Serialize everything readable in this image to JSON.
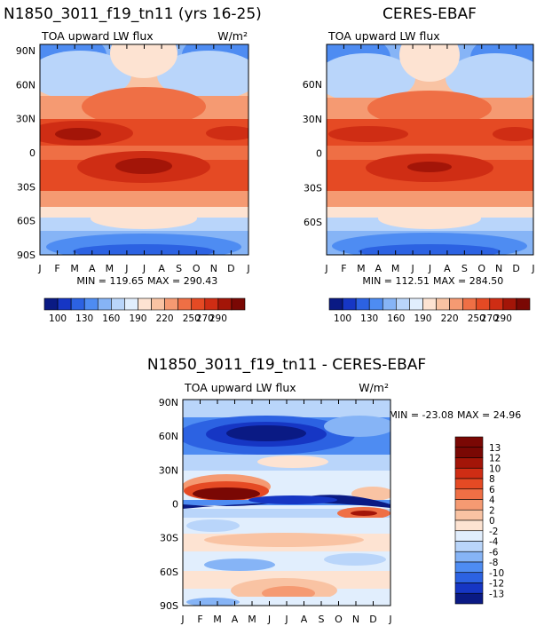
{
  "chart_data": [
    {
      "type": "heatmap",
      "title": "N1850_3011_f19_tn11 (yrs 16-25)",
      "variable": "TOA upward LW flux",
      "units": "W/m²",
      "min_label": "MIN = 119.65",
      "max_label": "MAX = 290.43",
      "x_ticks": [
        "J",
        "F",
        "M",
        "A",
        "M",
        "J",
        "J",
        "A",
        "S",
        "O",
        "N",
        "D",
        "J"
      ],
      "y_ticks": [
        "90N",
        "60N",
        "30N",
        "0",
        "30S",
        "60S",
        "90S"
      ],
      "y_values": [
        90,
        60,
        30,
        0,
        -30,
        -60,
        -90
      ],
      "ylim": [
        -90,
        90
      ],
      "colorbar_levels": [
        "100",
        "130",
        "160",
        "190",
        "220",
        "250",
        "270",
        "290"
      ]
    },
    {
      "type": "heatmap",
      "title": "CERES-EBAF",
      "variable": "TOA upward LW flux",
      "min_label": "MIN = 112.51",
      "max_label": "MAX = 284.50",
      "x_ticks": [
        "J",
        "F",
        "M",
        "A",
        "M",
        "J",
        "J",
        "A",
        "S",
        "O",
        "N",
        "D",
        "J"
      ],
      "y_ticks": [
        "60N",
        "30N",
        "0",
        "30S",
        "60S"
      ],
      "y_values": [
        60,
        30,
        0,
        -30,
        -60
      ],
      "ylim": [
        -90,
        90
      ],
      "colorbar_levels": [
        "100",
        "130",
        "160",
        "190",
        "220",
        "250",
        "270",
        "290"
      ]
    },
    {
      "type": "heatmap",
      "title": "N1850_3011_f19_tn11 - CERES-EBAF",
      "variable": "TOA upward LW flux",
      "units": "W/m²",
      "min_label": "MIN = -23.08",
      "max_label": "MAX =  24.96",
      "x_ticks": [
        "J",
        "F",
        "M",
        "A",
        "M",
        "J",
        "J",
        "A",
        "S",
        "O",
        "N",
        "D",
        "J"
      ],
      "y_ticks": [
        "90N",
        "60N",
        "30N",
        "0",
        "30S",
        "60S",
        "90S"
      ],
      "y_values": [
        90,
        60,
        30,
        0,
        -30,
        -60,
        -90
      ],
      "ylim": [
        -90,
        90
      ],
      "colorbar_levels": [
        "13",
        "12",
        "10",
        "8",
        "6",
        "4",
        "2",
        "0",
        "-2",
        "-4",
        "-6",
        "-8",
        "-10",
        "-12",
        "-13"
      ]
    }
  ],
  "colors": {
    "abs": [
      "#0a1a84",
      "#1636c4",
      "#2c62e2",
      "#4e8cf2",
      "#86b4f6",
      "#b9d5fa",
      "#e1eefd",
      "#fde3d2",
      "#f9c3a3",
      "#f59a72",
      "#ef6f45",
      "#e54a24",
      "#cf2d14",
      "#a31508",
      "#7a0804"
    ],
    "diff": [
      "#7a0804",
      "#a31508",
      "#cf2d14",
      "#e54a24",
      "#ef6f45",
      "#f59a72",
      "#f9c3a3",
      "#fde3d2",
      "#e1eefd",
      "#b9d5fa",
      "#86b4f6",
      "#4e8cf2",
      "#2c62e2",
      "#1636c4",
      "#0a1a84"
    ]
  }
}
